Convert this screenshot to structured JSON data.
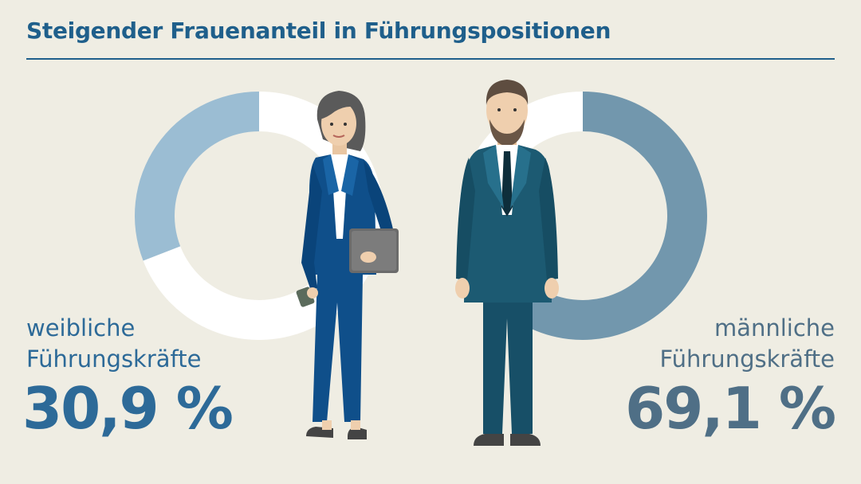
{
  "title": "Steigender Frauenanteil in Führungspositionen",
  "colors": {
    "background": "#efede3",
    "title": "#1f5f8b",
    "female_segment": "#9bbdd3",
    "male_segment": "#7297ad",
    "ring_rest": "#ffffff",
    "female_suit": "#0f4f8a",
    "male_suit": "#1c5a72"
  },
  "chart_data": [
    {
      "type": "pie",
      "categories": [
        "weibliche Führungskräfte",
        "Rest"
      ],
      "values": [
        30.9,
        69.1
      ],
      "highlight": "weibliche Führungskräfte",
      "label_lines": [
        "weibliche",
        "Führungskräfte"
      ],
      "value_text": "30,9 %"
    },
    {
      "type": "pie",
      "categories": [
        "männliche Führungskräfte",
        "Rest"
      ],
      "values": [
        69.1,
        30.9
      ],
      "highlight": "männliche Führungskräfte",
      "label_lines": [
        "männliche",
        "Führungskräfte"
      ],
      "value_text": "69,1 %"
    }
  ],
  "figures": [
    {
      "icon": "businesswoman-icon"
    },
    {
      "icon": "businessman-icon"
    }
  ]
}
